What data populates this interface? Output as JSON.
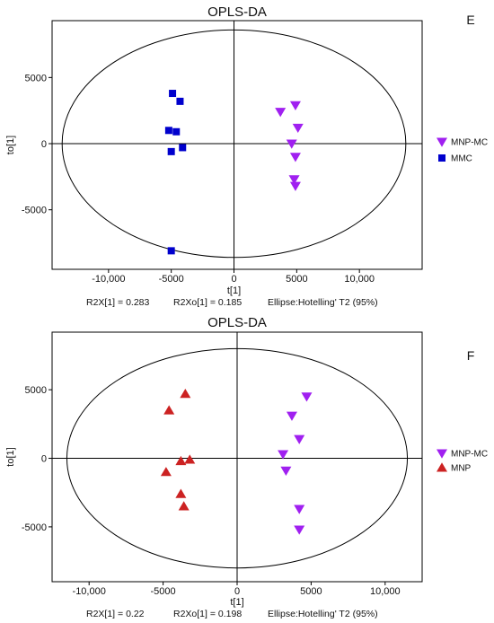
{
  "chart_data": [
    {
      "type": "scatter",
      "panel_letter": "E",
      "title": "OPLS-DA",
      "xlabel": "t[1]",
      "ylabel": "to[1]",
      "xlim": [
        -14500,
        15000
      ],
      "ylim": [
        -9500,
        9300
      ],
      "x_ticks": [
        -10000,
        -5000,
        0,
        5000,
        10000
      ],
      "x_tick_labels": [
        "-10,000",
        "-5000",
        "0",
        "5000",
        "10,000"
      ],
      "y_ticks": [
        -5000,
        0,
        5000
      ],
      "y_tick_labels": [
        "-5000",
        "0",
        "5000"
      ],
      "ellipse": {
        "rx": 13700,
        "ry": 8600
      },
      "legend_position": "right",
      "series": [
        {
          "name": "MNP-MC",
          "marker": "triangle-down",
          "color": "#a020f0",
          "points": [
            [
              3700,
              2400
            ],
            [
              4900,
              2900
            ],
            [
              5100,
              1200
            ],
            [
              4600,
              0
            ],
            [
              4900,
              -1000
            ],
            [
              4800,
              -2700
            ],
            [
              4900,
              -3200
            ]
          ]
        },
        {
          "name": "MMC",
          "marker": "square",
          "color": "#0000cd",
          "points": [
            [
              -4900,
              3800
            ],
            [
              -4300,
              3200
            ],
            [
              -5200,
              1000
            ],
            [
              -4600,
              900
            ],
            [
              -4100,
              -300
            ],
            [
              -5000,
              -600
            ],
            [
              -5000,
              -8100
            ]
          ]
        }
      ],
      "stats": [
        {
          "label": "R2X[1]",
          "value": "0.283"
        },
        {
          "label": "R2Xo[1]",
          "value": "0.185"
        },
        {
          "label": "Ellipse:Hotelling' T2 (95%)",
          "value": ""
        }
      ]
    },
    {
      "type": "scatter",
      "panel_letter": "F",
      "title": "OPLS-DA",
      "xlabel": "t[1]",
      "ylabel": "to[1]",
      "xlim": [
        -12500,
        12500
      ],
      "ylim": [
        -9000,
        9200
      ],
      "x_ticks": [
        -10000,
        -5000,
        0,
        5000,
        10000
      ],
      "x_tick_labels": [
        "-10,000",
        "-5000",
        "0",
        "5000",
        "10,000"
      ],
      "y_ticks": [
        -5000,
        0,
        5000
      ],
      "y_tick_labels": [
        "-5000",
        "0",
        "5000"
      ],
      "ellipse": {
        "rx": 11500,
        "ry": 8000
      },
      "legend_position": "right",
      "series": [
        {
          "name": "MNP-MC",
          "marker": "triangle-down",
          "color": "#a020f0",
          "points": [
            [
              4700,
              4500
            ],
            [
              3700,
              3100
            ],
            [
              4200,
              1400
            ],
            [
              3100,
              300
            ],
            [
              3300,
              -900
            ],
            [
              4200,
              -3700
            ],
            [
              4200,
              -5200
            ]
          ]
        },
        {
          "name": "MNP",
          "marker": "triangle-up",
          "color": "#cc2222",
          "points": [
            [
              -3500,
              4700
            ],
            [
              -4600,
              3500
            ],
            [
              -3200,
              -100
            ],
            [
              -3800,
              -200
            ],
            [
              -4800,
              -1000
            ],
            [
              -3800,
              -2600
            ],
            [
              -3600,
              -3500
            ]
          ]
        }
      ],
      "stats": [
        {
          "label": "R2X[1]",
          "value": "0.22"
        },
        {
          "label": "R2Xo[1]",
          "value": "0.198"
        },
        {
          "label": "Ellipse:Hotelling' T2 (95%)",
          "value": ""
        }
      ]
    }
  ]
}
